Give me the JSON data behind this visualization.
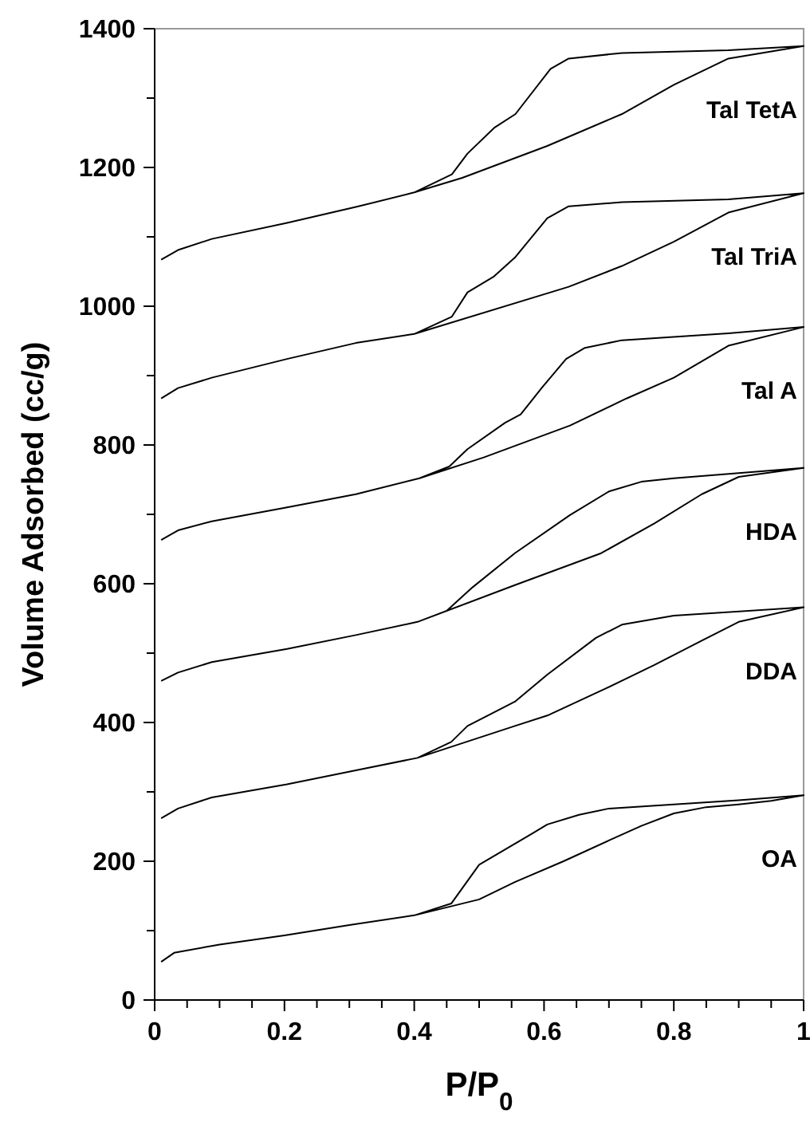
{
  "chart_data": {
    "type": "line",
    "xlabel": "P/P$_{0}$",
    "ylabel": "Volume Adsorbed (cc/g)",
    "xlim": [
      0,
      1
    ],
    "ylim": [
      0,
      1400
    ],
    "xticks": [
      0,
      {
        "value": 0.05,
        "label": null
      },
      {
        "value": 0.1,
        "label": null
      },
      {
        "value": 0.15,
        "label": null
      },
      0.2,
      {
        "value": 0.25,
        "label": null
      },
      {
        "value": 0.3,
        "label": null
      },
      {
        "value": 0.35,
        "label": null
      },
      0.4,
      {
        "value": 0.45,
        "label": null
      },
      {
        "value": 0.5,
        "label": null
      },
      {
        "value": 0.55,
        "label": null
      },
      0.6,
      {
        "value": 0.65,
        "label": null
      },
      {
        "value": 0.7,
        "label": null
      },
      {
        "value": 0.75,
        "label": null
      },
      0.8,
      {
        "value": 0.85,
        "label": null
      },
      {
        "value": 0.9,
        "label": null
      },
      {
        "value": 0.95,
        "label": null
      },
      1
    ],
    "yticks": [
      0,
      {
        "value": 100,
        "label": null
      },
      200,
      {
        "value": 300,
        "label": null
      },
      400,
      {
        "value": 500,
        "label": null
      },
      600,
      {
        "value": 700,
        "label": null
      },
      800,
      {
        "value": 900,
        "label": null
      },
      1000,
      {
        "value": 1100,
        "label": null
      },
      1200,
      {
        "value": 1300,
        "label": null
      },
      1400
    ],
    "grid": false,
    "legend": false,
    "marker": "none",
    "line_style": "solid",
    "series": [
      {
        "name": "OA",
        "color": "#000000",
        "x": [
          0.01,
          0.03,
          0.1,
          0.2,
          0.3,
          0.4,
          0.5,
          0.555,
          0.63,
          0.7,
          0.75,
          0.8,
          0.85,
          0.9,
          0.95,
          1.0,
          0.9,
          0.8,
          0.7,
          0.654,
          0.605,
          0.58,
          0.5,
          0.457,
          0.4
        ],
        "values": [
          55,
          68,
          80,
          93,
          108,
          122,
          145,
          170,
          200,
          230,
          251,
          269,
          278,
          282,
          287,
          295,
          288,
          282,
          276,
          267,
          253,
          239,
          195,
          139,
          122
        ]
      },
      {
        "name": "DDA",
        "color": "#000000",
        "x": [
          0.01,
          0.036,
          0.088,
          0.204,
          0.31,
          0.405,
          0.555,
          0.605,
          0.695,
          0.77,
          0.843,
          0.9,
          1.0,
          0.8,
          0.72,
          0.68,
          0.605,
          0.555,
          0.482,
          0.457,
          0.405
        ],
        "values": [
          262,
          276,
          292,
          311,
          331,
          349,
          395,
          410,
          449,
          483,
          518,
          545,
          566,
          554,
          541,
          522,
          469,
          430,
          395,
          372,
          349
        ]
      },
      {
        "name": "HDA",
        "color": "#000000",
        "x": [
          0.01,
          0.036,
          0.088,
          0.204,
          0.31,
          0.405,
          0.555,
          0.688,
          0.77,
          0.843,
          0.9,
          1.0,
          0.8,
          0.75,
          0.7,
          0.64,
          0.555,
          0.49,
          0.45,
          0.405
        ],
        "values": [
          460,
          472,
          487,
          506,
          526,
          545,
          598,
          644,
          687,
          729,
          754,
          767,
          752,
          747,
          733,
          699,
          644,
          595,
          561,
          545
        ]
      },
      {
        "name": "Tal A",
        "color": "#000000",
        "x": [
          0.01,
          0.036,
          0.088,
          0.204,
          0.31,
          0.408,
          0.507,
          0.64,
          0.727,
          0.8,
          0.884,
          1.0,
          0.884,
          0.72,
          0.663,
          0.634,
          0.597,
          0.564,
          0.54,
          0.482,
          0.454,
          0.408
        ],
        "values": [
          663,
          677,
          690,
          710,
          729,
          752,
          782,
          828,
          867,
          897,
          943,
          970,
          961,
          951,
          940,
          924,
          883,
          844,
          832,
          794,
          769,
          752
        ]
      },
      {
        "name": "Tal TriA",
        "color": "#000000",
        "x": [
          0.01,
          0.036,
          0.088,
          0.204,
          0.31,
          0.4,
          0.638,
          0.72,
          0.8,
          0.884,
          1.0,
          0.884,
          0.72,
          0.638,
          0.605,
          0.555,
          0.523,
          0.482,
          0.458,
          0.4
        ],
        "values": [
          867,
          882,
          897,
          924,
          947,
          960,
          1028,
          1058,
          1093,
          1135,
          1163,
          1154,
          1150,
          1144,
          1127,
          1070,
          1043,
          1020,
          985,
          960
        ]
      },
      {
        "name": "Tal TetA",
        "color": "#000000",
        "x": [
          0.01,
          0.036,
          0.088,
          0.204,
          0.31,
          0.4,
          0.474,
          0.605,
          0.72,
          0.8,
          0.884,
          1.0,
          0.884,
          0.72,
          0.638,
          0.61,
          0.556,
          0.523,
          0.482,
          0.458,
          0.4
        ],
        "values": [
          1067,
          1081,
          1097,
          1120,
          1143,
          1164,
          1185,
          1231,
          1277,
          1319,
          1357,
          1375,
          1369,
          1365,
          1357,
          1342,
          1277,
          1257,
          1220,
          1190,
          1164
        ]
      }
    ]
  }
}
